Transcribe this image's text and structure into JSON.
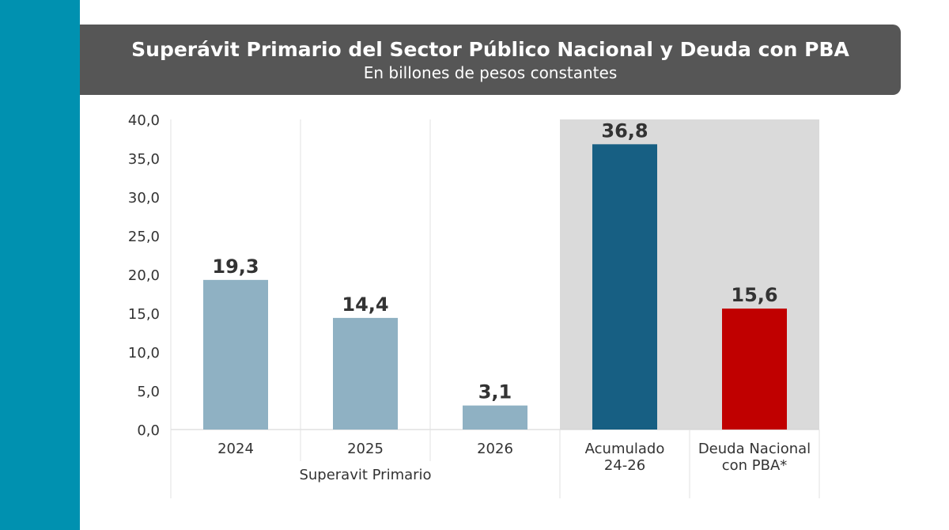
{
  "colors": {
    "side_strip": "#0091b0",
    "header_bg": "#565656",
    "highlight_bg": "#dadada",
    "bar_light": "#8fb1c3",
    "bar_dark": "#175f83",
    "bar_red": "#c00000"
  },
  "chart_data": {
    "type": "bar",
    "title": "Superávit Primario del Sector Público Nacional y Deuda con PBA",
    "subtitle": "En billones de pesos constantes",
    "ylim": [
      0,
      40
    ],
    "yticks": [
      "0,0",
      "5,0",
      "10,0",
      "15,0",
      "20,0",
      "25,0",
      "30,0",
      "35,0",
      "40,0"
    ],
    "categories": [
      {
        "lines": [
          "2024"
        ],
        "value": 19.3,
        "label": "19,3",
        "color": "#8fb1c3"
      },
      {
        "lines": [
          "2025"
        ],
        "value": 14.4,
        "label": "14,4",
        "color": "#8fb1c3"
      },
      {
        "lines": [
          "2026"
        ],
        "value": 3.1,
        "label": "3,1",
        "color": "#8fb1c3"
      },
      {
        "lines": [
          "Acumulado",
          "24-26"
        ],
        "value": 36.8,
        "label": "36,8",
        "color": "#175f83"
      },
      {
        "lines": [
          "Deuda Nacional",
          "con PBA*"
        ],
        "value": 15.6,
        "label": "15,6",
        "color": "#c00000"
      }
    ],
    "group_label": "Superavit Primario",
    "grid": false,
    "highlighted_categories": [
      "Acumulado 24-26",
      "Deuda Nacional con PBA*"
    ]
  }
}
